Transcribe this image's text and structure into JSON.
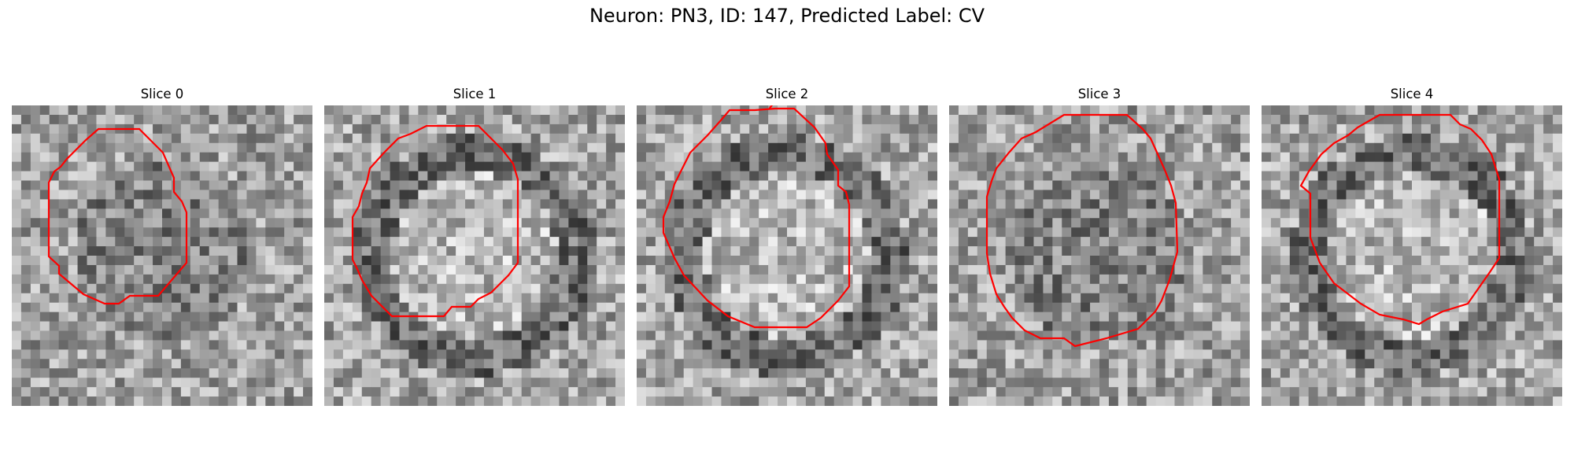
{
  "title": "Neuron: PN3, ID: 147, Predicted Label: CV",
  "contour_color": "#ff0000",
  "panels": [
    {
      "label": "Slice 0",
      "seed": 11,
      "center_bright": false
    },
    {
      "label": "Slice 1",
      "seed": 23,
      "center_bright": true
    },
    {
      "label": "Slice 2",
      "seed": 37,
      "center_bright": true
    },
    {
      "label": "Slice 3",
      "seed": 41,
      "center_bright": false
    },
    {
      "label": "Slice 4",
      "seed": 53,
      "center_bright": true
    }
  ]
}
